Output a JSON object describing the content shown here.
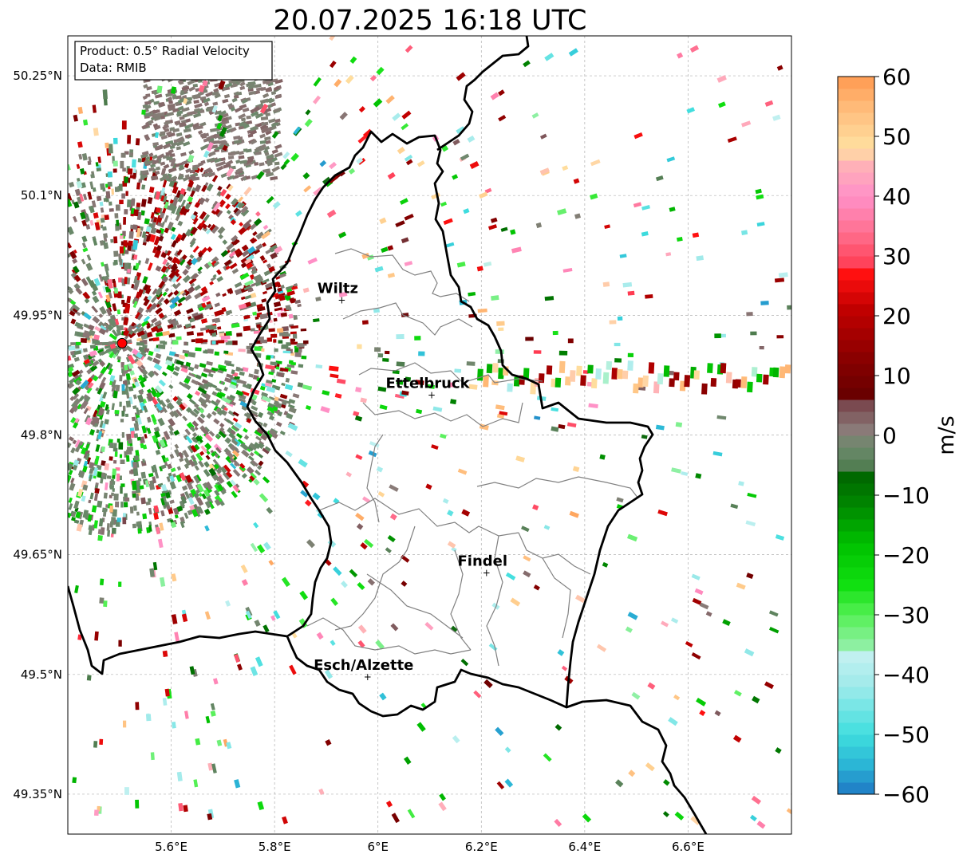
{
  "title": "20.07.2025 16:18 UTC",
  "info_box": {
    "product": "Product: 0.5° Radial Velocity",
    "data": "Data: RMIB"
  },
  "map": {
    "lon_range": [
      5.4,
      6.8
    ],
    "lat_range": [
      49.3,
      50.3
    ],
    "lon_ticks": [
      {
        "value": 5.6,
        "label": "5.6°E"
      },
      {
        "value": 5.8,
        "label": "5.8°E"
      },
      {
        "value": 6.0,
        "label": "6°E"
      },
      {
        "value": 6.2,
        "label": "6.2°E"
      },
      {
        "value": 6.4,
        "label": "6.4°E"
      },
      {
        "value": 6.6,
        "label": "6.6°E"
      }
    ],
    "lat_ticks": [
      {
        "value": 49.35,
        "label": "49.35°N"
      },
      {
        "value": 49.5,
        "label": "49.5°N"
      },
      {
        "value": 49.65,
        "label": "49.65°N"
      },
      {
        "value": 49.8,
        "label": "49.8°N"
      },
      {
        "value": 49.95,
        "label": "49.95°N"
      },
      {
        "value": 50.1,
        "label": "50.1°N"
      },
      {
        "value": 50.25,
        "label": "50.25°N"
      }
    ],
    "grid": true,
    "radar_site": {
      "lon": 5.505,
      "lat": 49.915
    },
    "cities": [
      {
        "name": "Wiltz",
        "lon": 5.93,
        "lat": 49.969
      },
      {
        "name": "Ettelbruck",
        "lon": 6.104,
        "lat": 49.85
      },
      {
        "name": "Findel",
        "lon": 6.21,
        "lat": 49.627
      },
      {
        "name": "Esch/Alzette",
        "lon": 5.98,
        "lat": 49.497
      }
    ]
  },
  "colorbar": {
    "label": "m/s",
    "vmin": -60,
    "vmax": 60,
    "ticks": [
      {
        "value": 60,
        "label": "60"
      },
      {
        "value": 50,
        "label": "50"
      },
      {
        "value": 40,
        "label": "40"
      },
      {
        "value": 30,
        "label": "30"
      },
      {
        "value": 20,
        "label": "20"
      },
      {
        "value": 10,
        "label": "10"
      },
      {
        "value": 0,
        "label": "0"
      },
      {
        "value": -10,
        "label": "−10"
      },
      {
        "value": -20,
        "label": "−20"
      },
      {
        "value": -30,
        "label": "−30"
      },
      {
        "value": -40,
        "label": "−40"
      },
      {
        "value": -50,
        "label": "−50"
      },
      {
        "value": -60,
        "label": "−60"
      }
    ],
    "stops": [
      {
        "v": -60,
        "c": "#1f77c4"
      },
      {
        "v": -55,
        "c": "#2bb6d6"
      },
      {
        "v": -50,
        "c": "#3fdede"
      },
      {
        "v": -42,
        "c": "#9eeaea"
      },
      {
        "v": -37,
        "c": "#c0f0f0"
      },
      {
        "v": -36,
        "c": "#98f0b0"
      },
      {
        "v": -30,
        "c": "#55f055"
      },
      {
        "v": -25,
        "c": "#11e011"
      },
      {
        "v": -18,
        "c": "#00c000"
      },
      {
        "v": -12,
        "c": "#008a00"
      },
      {
        "v": -6.5,
        "c": "#006600"
      },
      {
        "v": -6,
        "c": "#4a7a4a"
      },
      {
        "v": -2,
        "c": "#6c8a6c"
      },
      {
        "v": 1,
        "c": "#8a7a78"
      },
      {
        "v": 5,
        "c": "#7a4a50"
      },
      {
        "v": 7,
        "c": "#6a0000"
      },
      {
        "v": 13,
        "c": "#8a0000"
      },
      {
        "v": 21,
        "c": "#c00000"
      },
      {
        "v": 27,
        "c": "#ff1010"
      },
      {
        "v": 28,
        "c": "#ff3a50"
      },
      {
        "v": 34,
        "c": "#ff7090"
      },
      {
        "v": 40,
        "c": "#ff90c8"
      },
      {
        "v": 45,
        "c": "#ffb0b8"
      },
      {
        "v": 48,
        "c": "#ffe0a0"
      },
      {
        "v": 54,
        "c": "#ffc080"
      },
      {
        "v": 60,
        "c": "#ff9a50"
      }
    ]
  }
}
